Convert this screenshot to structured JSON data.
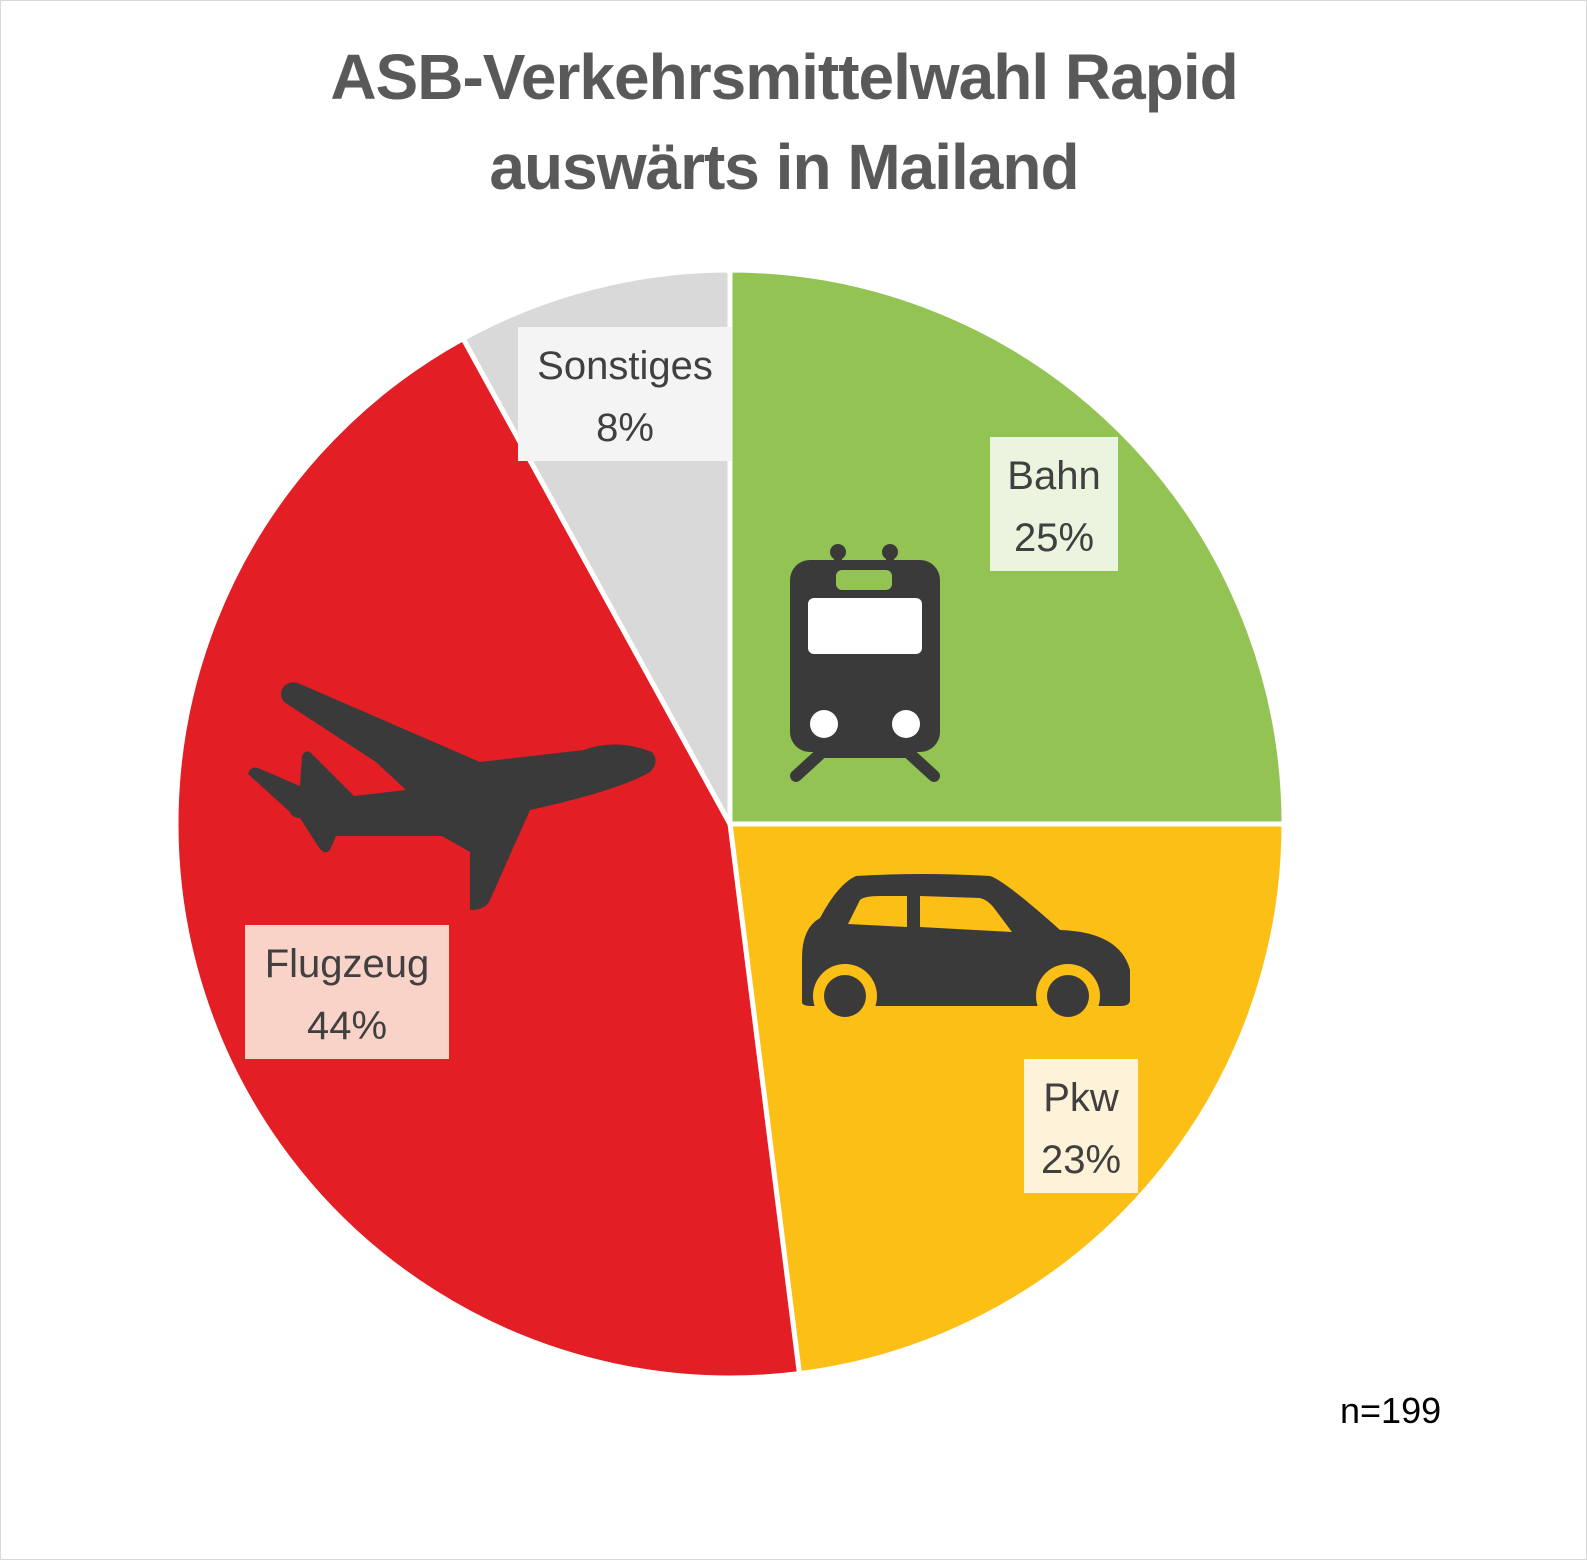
{
  "title_line1": "ASB-Verkehrsmittelwahl Rapid",
  "title_line2": "auswärts in Mailand",
  "note": "n=199",
  "chart_data": {
    "type": "pie",
    "title": "ASB-Verkehrsmittelwahl Rapid auswärts in Mailand",
    "start_angle_deg": 0,
    "direction": "clockwise",
    "slices": [
      {
        "key": "bahn",
        "label": "Bahn",
        "value": 25,
        "value_label": "25%",
        "color": "#92C353",
        "label_bg": "#EAF4DE",
        "icon": "train-icon"
      },
      {
        "key": "pkw",
        "label": "Pkw",
        "value": 23,
        "value_label": "23%",
        "color": "#FBBF16",
        "label_bg": "#FEF3D8",
        "icon": "car-icon"
      },
      {
        "key": "flugzeug",
        "label": "Flugzeug",
        "value": 44,
        "value_label": "44%",
        "color": "#E31E24",
        "label_bg": "#F9D2C8",
        "icon": "airplane-icon"
      },
      {
        "key": "sonstiges",
        "label": "Sonstiges",
        "value": 8,
        "value_label": "8%",
        "color": "#D9D9D9",
        "label_bg": "#F4F4F4",
        "icon": ""
      }
    ]
  }
}
